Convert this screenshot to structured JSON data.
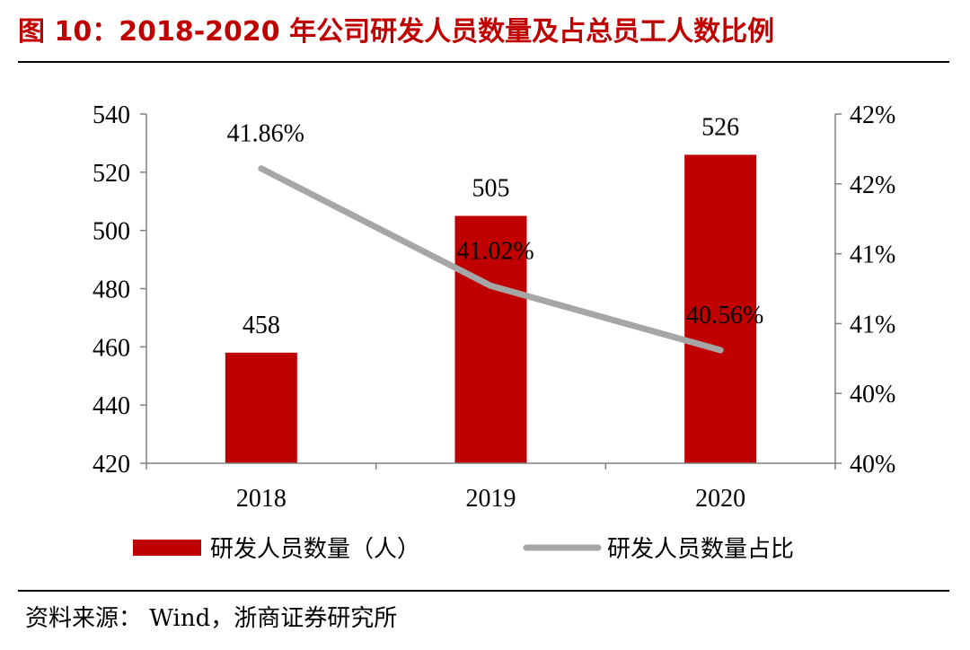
{
  "title": "图 10：2018-2020 年公司研发人员数量及占总员工人数比例",
  "source": "资料来源： Wind，浙商证券研究所",
  "colors": {
    "bar": "#c00000",
    "line": "#a6a6a6",
    "title": "#c00000"
  },
  "chart_data": {
    "type": "bar+line",
    "categories": [
      "2018",
      "2019",
      "2020"
    ],
    "series": [
      {
        "name": "研发人员数量（人）",
        "type": "bar",
        "axis": "left",
        "values": [
          458,
          505,
          526
        ],
        "labels": [
          "458",
          "505",
          "526"
        ]
      },
      {
        "name": "研发人员数量占比",
        "type": "line",
        "axis": "right",
        "values": [
          41.86,
          41.02,
          40.56
        ],
        "labels": [
          "41.86%",
          "41.02%",
          "40.56%"
        ]
      }
    ],
    "left_axis": {
      "min": 420,
      "max": 540,
      "ticks": [
        "420",
        "440",
        "460",
        "480",
        "500",
        "520",
        "540"
      ]
    },
    "right_axis": {
      "min": 39.75,
      "max": 42.25,
      "ticks": [
        "40%",
        "40%",
        "41%",
        "41%",
        "42%",
        "42%"
      ]
    },
    "legend": "bottom"
  }
}
